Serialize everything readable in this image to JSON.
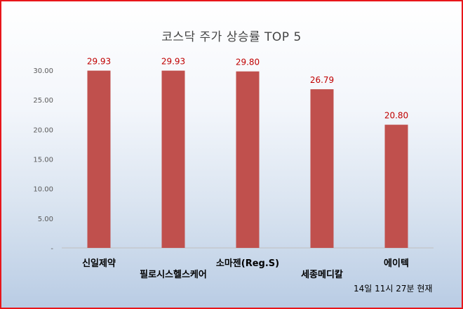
{
  "chart_data": {
    "type": "bar",
    "title": "코스닥 주가 상승률 TOP 5",
    "categories": [
      "신일제약",
      "필로시스헬스케어",
      "소마젠(Reg.S)",
      "세종메디칼",
      "에이텍"
    ],
    "values": [
      29.93,
      29.93,
      29.8,
      26.79,
      20.8
    ],
    "value_labels": [
      "29.93",
      "29.93",
      "29.80",
      "26.79",
      "20.80"
    ],
    "y_ticks": [
      "-",
      "5.00",
      "10.00",
      "15.00",
      "20.00",
      "25.00",
      "30.00"
    ],
    "ylim": [
      0,
      30
    ],
    "xlabel": "",
    "ylabel": "",
    "legend": "none",
    "grid": false,
    "bar_color": "#c0504d",
    "label_color": "#c00000"
  },
  "note": "14일  11시 27분 현재"
}
